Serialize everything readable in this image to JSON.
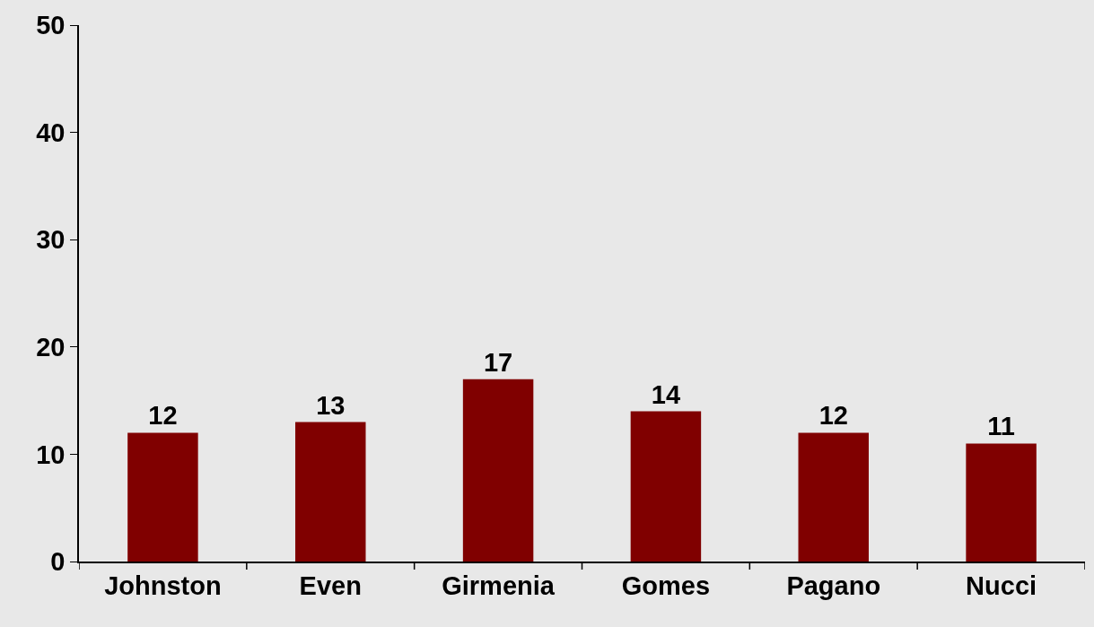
{
  "chart_data": {
    "type": "bar",
    "categories": [
      "Johnston",
      "Even",
      "Girmenia",
      "Gomes",
      "Pagano",
      "Nucci"
    ],
    "values": [
      12,
      13,
      17,
      14,
      12,
      11
    ],
    "color": "#800000",
    "ylim": [
      0,
      50
    ],
    "yticks": [
      0,
      10,
      20,
      30,
      40,
      50
    ],
    "data_labels": true,
    "grid": false,
    "legend": false
  }
}
